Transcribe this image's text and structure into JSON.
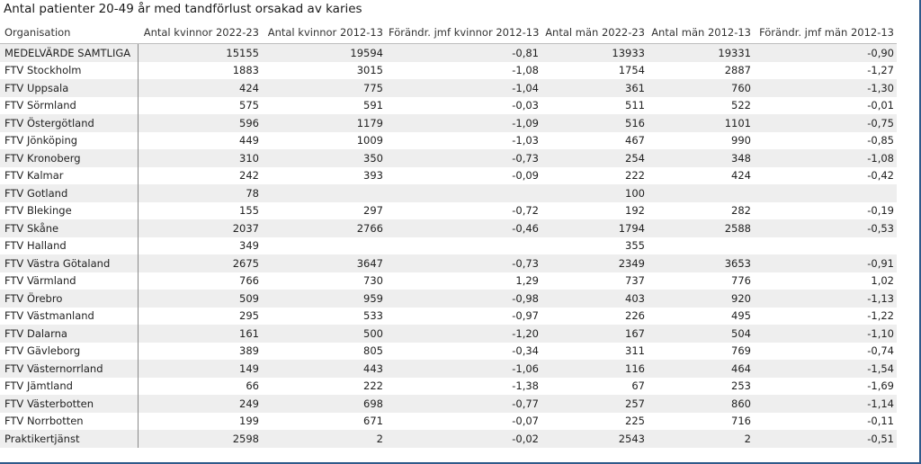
{
  "title": "Antal patienter 20-49 år med tandförlust orsakad av karies",
  "columns": [
    "Organisation",
    "Antal kvinnor 2022-23",
    "Antal kvinnor 2012-13",
    "Förändr. jmf kvinnor 2012-13",
    "Antal män 2022-23",
    "Antal män 2012-13",
    "Förändr. jmf män 2012-13"
  ],
  "rows": [
    [
      "MEDELVÄRDE SAMTLIGA",
      "15155",
      "19594",
      "-0,81",
      "13933",
      "19331",
      "-0,90"
    ],
    [
      "FTV Stockholm",
      "1883",
      "3015",
      "-1,08",
      "1754",
      "2887",
      "-1,27"
    ],
    [
      "FTV Uppsala",
      "424",
      "775",
      "-1,04",
      "361",
      "760",
      "-1,30"
    ],
    [
      "FTV Sörmland",
      "575",
      "591",
      "-0,03",
      "511",
      "522",
      "-0,01"
    ],
    [
      "FTV Östergötland",
      "596",
      "1179",
      "-1,09",
      "516",
      "1101",
      "-0,75"
    ],
    [
      "FTV Jönköping",
      "449",
      "1009",
      "-1,03",
      "467",
      "990",
      "-0,85"
    ],
    [
      "FTV Kronoberg",
      "310",
      "350",
      "-0,73",
      "254",
      "348",
      "-1,08"
    ],
    [
      "FTV Kalmar",
      "242",
      "393",
      "-0,09",
      "222",
      "424",
      "-0,42"
    ],
    [
      "FTV Gotland",
      "78",
      "",
      "",
      "100",
      "",
      ""
    ],
    [
      "FTV Blekinge",
      "155",
      "297",
      "-0,72",
      "192",
      "282",
      "-0,19"
    ],
    [
      "FTV Skåne",
      "2037",
      "2766",
      "-0,46",
      "1794",
      "2588",
      "-0,53"
    ],
    [
      "FTV Halland",
      "349",
      "",
      "",
      "355",
      "",
      ""
    ],
    [
      "FTV Västra Götaland",
      "2675",
      "3647",
      "-0,73",
      "2349",
      "3653",
      "-0,91"
    ],
    [
      "FTV Värmland",
      "766",
      "730",
      "1,29",
      "737",
      "776",
      "1,02"
    ],
    [
      "FTV Örebro",
      "509",
      "959",
      "-0,98",
      "403",
      "920",
      "-1,13"
    ],
    [
      "FTV Västmanland",
      "295",
      "533",
      "-0,97",
      "226",
      "495",
      "-1,22"
    ],
    [
      "FTV Dalarna",
      "161",
      "500",
      "-1,20",
      "167",
      "504",
      "-1,10"
    ],
    [
      "FTV Gävleborg",
      "389",
      "805",
      "-0,34",
      "311",
      "769",
      "-0,74"
    ],
    [
      "FTV Västernorrland",
      "149",
      "443",
      "-1,06",
      "116",
      "464",
      "-1,54"
    ],
    [
      "FTV Jämtland",
      "66",
      "222",
      "-1,38",
      "67",
      "253",
      "-1,69"
    ],
    [
      "FTV Västerbotten",
      "249",
      "698",
      "-0,77",
      "257",
      "860",
      "-1,14"
    ],
    [
      "FTV Norrbotten",
      "199",
      "671",
      "-0,07",
      "225",
      "716",
      "-0,11"
    ],
    [
      "Praktikertjänst",
      "2598",
      "2",
      "-0,02",
      "2543",
      "2",
      "-0,51"
    ]
  ]
}
